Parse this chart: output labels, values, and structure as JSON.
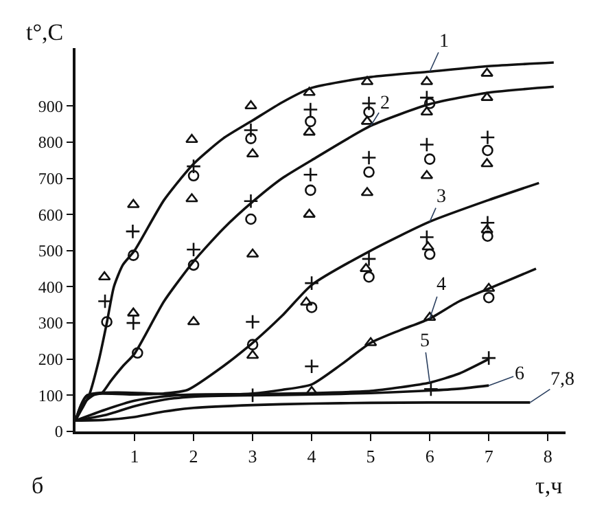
{
  "chart_data": {
    "type": "line",
    "xlabel": "τ,ч",
    "ylabel": "t°,C",
    "xlim": [
      0,
      8.3
    ],
    "xticks": [
      1,
      2,
      3,
      4,
      5,
      6,
      7,
      8
    ],
    "ylim": [
      0,
      1060
    ],
    "yticks": [
      0,
      100,
      200,
      300,
      400,
      500,
      600,
      700,
      800,
      900
    ],
    "line_style": "solid",
    "annotations": [
      "б"
    ],
    "series": [
      {
        "name": "1",
        "color": "#111111",
        "x": [
          0,
          0.1,
          0.23,
          0.4,
          0.53,
          0.65,
          0.8,
          1.0,
          1.5,
          2,
          2.5,
          3,
          3.5,
          4,
          5,
          6,
          7,
          8.1
        ],
        "values": [
          30,
          60,
          100,
          200,
          300,
          400,
          460,
          500,
          640,
          740,
          810,
          860,
          910,
          950,
          980,
          995,
          1010,
          1020
        ]
      },
      {
        "name": "2",
        "color": "#111111",
        "x": [
          0,
          0.15,
          0.3,
          0.45,
          0.6,
          0.8,
          1.0,
          1.5,
          2,
          2.5,
          3,
          3.5,
          4,
          5,
          6,
          7,
          8.1
        ],
        "values": [
          30,
          80,
          100,
          107,
          140,
          180,
          215,
          360,
          470,
          560,
          635,
          700,
          750,
          845,
          905,
          937,
          953
        ]
      },
      {
        "name": "3",
        "color": "#111111",
        "x": [
          0,
          0.2,
          1,
          1.5,
          1.9,
          2.5,
          3,
          3.5,
          4,
          5,
          6,
          7,
          7.85
        ],
        "values": [
          30,
          100,
          102,
          105,
          115,
          180,
          245,
          320,
          405,
          500,
          580,
          640,
          687
        ]
      },
      {
        "name": "4",
        "color": "#111111",
        "x": [
          0,
          0.2,
          2,
          3,
          3.5,
          4,
          4.5,
          5,
          5.5,
          6,
          6.5,
          7,
          7.8
        ],
        "values": [
          30,
          100,
          100,
          105,
          115,
          130,
          185,
          245,
          280,
          312,
          360,
          395,
          450
        ]
      },
      {
        "name": "5",
        "color": "#111111",
        "x": [
          0,
          0.5,
          1,
          1.5,
          2,
          3,
          4,
          5,
          5.5,
          6,
          6.5,
          7
        ],
        "values": [
          30,
          60,
          85,
          97,
          102,
          103,
          106,
          112,
          122,
          135,
          160,
          200
        ]
      },
      {
        "name": "6",
        "color": "#111111",
        "x": [
          0,
          0.5,
          1,
          1.5,
          2,
          3,
          4,
          5,
          6,
          6.5,
          7
        ],
        "values": [
          30,
          45,
          70,
          88,
          96,
          100,
          102,
          106,
          113,
          118,
          127
        ]
      },
      {
        "name": "7,8",
        "color": "#111111",
        "x": [
          0,
          0.5,
          1,
          1.5,
          2,
          3,
          4,
          5,
          6,
          7.7
        ],
        "values": [
          30,
          32,
          40,
          55,
          65,
          73,
          77,
          79,
          80,
          80
        ]
      },
      {
        "type": "scatter",
        "marker": "triangle",
        "color": "#111111",
        "x": [
          0.49,
          0.98,
          0.98,
          1.97,
          1.97,
          2,
          2.97,
          3,
          3,
          3,
          3.96,
          3.96,
          3.96,
          3.91,
          4.94,
          4.94,
          4.94,
          4.92,
          5.95,
          5.95,
          5.95,
          5.97,
          6.97,
          6.97,
          6.97,
          6.97,
          4,
          5,
          6,
          7
        ],
        "values": [
          427,
          627,
          327,
          807,
          643,
          303,
          900,
          767,
          490,
          210,
          937,
          827,
          600,
          357,
          967,
          857,
          660,
          450,
          967,
          883,
          707,
          510,
          990,
          923,
          740,
          557,
          110,
          245,
          315,
          395
        ]
      },
      {
        "type": "scatter",
        "marker": "cross",
        "color": "#111111",
        "x": [
          0.5,
          0.97,
          0.98,
          2,
          2,
          2.97,
          2.97,
          3,
          3,
          3.98,
          3.98,
          4,
          4,
          4.97,
          4.97,
          4.97,
          5.95,
          5.95,
          5.95,
          6.02,
          6.98,
          6.98,
          7
        ],
        "values": [
          360,
          553,
          300,
          733,
          503,
          833,
          637,
          303,
          100,
          890,
          710,
          410,
          180,
          907,
          757,
          477,
          923,
          793,
          537,
          117,
          813,
          577,
          203
        ]
      },
      {
        "type": "scatter",
        "marker": "circle",
        "color": "#111111",
        "x": [
          0.53,
          0.98,
          1.05,
          2,
          2,
          2.97,
          2.97,
          3,
          3.98,
          3.98,
          4,
          4.97,
          4.97,
          4.97,
          6,
          6,
          6,
          6.98,
          6.98,
          7
        ],
        "values": [
          303,
          487,
          217,
          707,
          460,
          810,
          587,
          240,
          857,
          667,
          343,
          883,
          717,
          427,
          907,
          753,
          490,
          777,
          540,
          370
        ]
      }
    ]
  }
}
